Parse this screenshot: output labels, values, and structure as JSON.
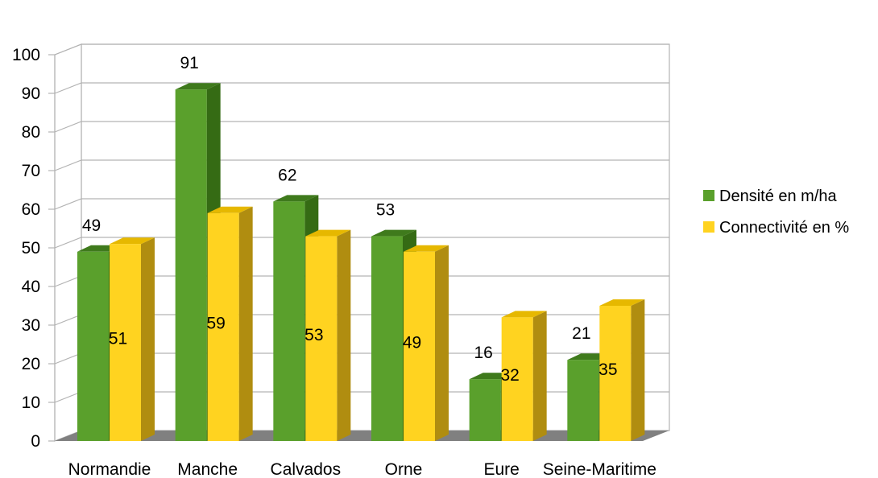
{
  "chart_data": {
    "type": "bar",
    "title": "",
    "xlabel": "",
    "ylabel": "",
    "ylim": [
      0,
      100
    ],
    "yticks": [
      0,
      10,
      20,
      30,
      40,
      50,
      60,
      70,
      80,
      90,
      100
    ],
    "grid": true,
    "legend_position": "right",
    "three_d": true,
    "categories": [
      "Normandie",
      "Manche",
      "Calvados",
      "Orne",
      "Eure",
      "Seine-Maritime"
    ],
    "series": [
      {
        "name": "Densité en m/ha",
        "values": [
          49,
          91,
          62,
          53,
          16,
          21
        ],
        "color": "#5aa02c",
        "top_color": "#3f7a1c",
        "side_color": "#356b14"
      },
      {
        "name": "Connectivité en %",
        "values": [
          51,
          59,
          53,
          49,
          32,
          35
        ],
        "color": "#ffd320",
        "top_color": "#e6b800",
        "side_color": "#b08d10"
      }
    ],
    "data_labels": {
      "series_0": [
        "49",
        "91",
        "62",
        "53",
        "16",
        "21"
      ],
      "series_1": [
        "51",
        "59",
        "53",
        "49",
        "32",
        "35"
      ]
    }
  }
}
